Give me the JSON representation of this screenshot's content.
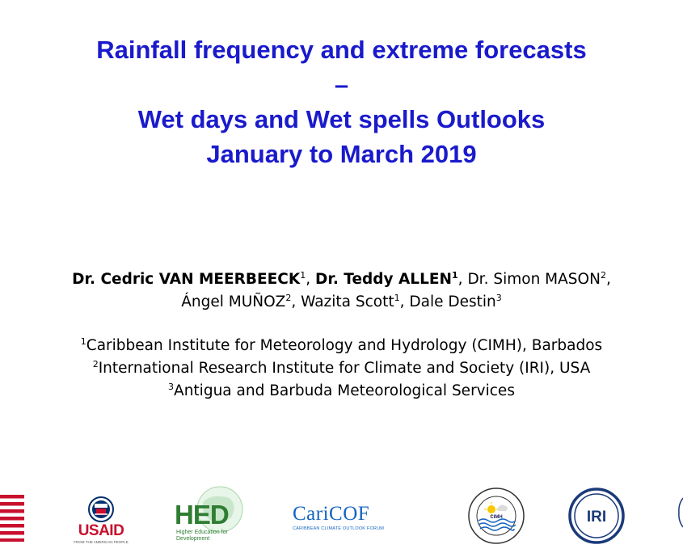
{
  "title": {
    "line1": "Rainfall frequency and extreme forecasts",
    "line2": "–",
    "line3": "Wet days and Wet spells Outlooks",
    "line4": "January to March 2019"
  },
  "authors": [
    {
      "name": "Dr. Cedric VAN MEERBEECK",
      "affil": "1"
    },
    {
      "name": "Dr. Teddy ALLEN",
      "affil": "1"
    },
    {
      "name": "Dr. Simon MASON",
      "affil": "2"
    },
    {
      "name": "Ángel MUÑOZ",
      "affil": "2"
    },
    {
      "name": "Wazita Scott",
      "affil": "1"
    },
    {
      "name": "Dale Destin",
      "affil": "3"
    }
  ],
  "affiliations": [
    {
      "num": "1",
      "text": "Caribbean Institute for Meteorology and Hydrology (CIMH), Barbados"
    },
    {
      "num": "2",
      "text": "International Research Institute for Climate and Society (IRI), USA"
    },
    {
      "num": "3",
      "text": "Antigua and Barbuda Meteorological Services"
    }
  ],
  "logos": {
    "usaid": {
      "name": "USAID",
      "tagline": "FROM THE AMERICAN PEOPLE"
    },
    "hed": {
      "name": "HED",
      "tagline": "Higher Education for Development"
    },
    "caricof": {
      "name": "CariCOF",
      "tagline": "CARIBBEAN CLIMATE OUTLOOK FORUM"
    },
    "cimh": {
      "name": "CIMH"
    },
    "iri": {
      "name": "IRI"
    }
  },
  "colors": {
    "title": "#1a1acc",
    "usaid_red": "#c8102e",
    "usaid_blue": "#002f6c",
    "hed_green": "#2e7d32",
    "caricof_blue": "#1565c0",
    "iri_blue": "#1a3a7a"
  }
}
